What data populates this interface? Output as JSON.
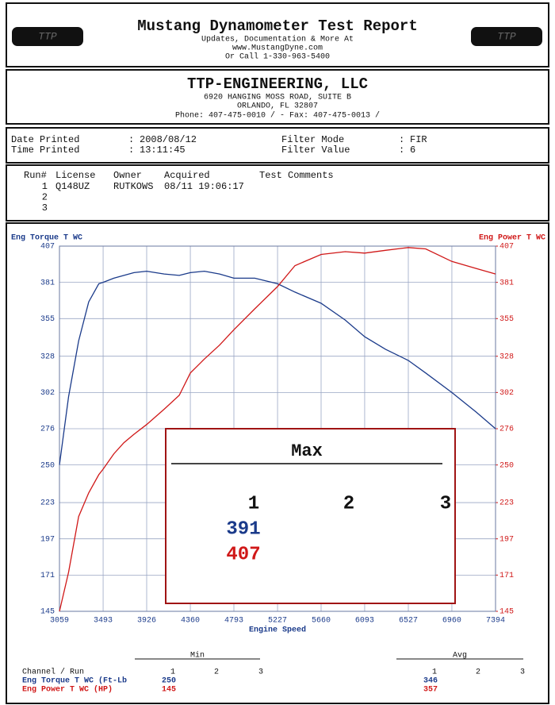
{
  "header": {
    "title": "Mustang Dynamometer Test Report",
    "lines": [
      "Updates, Documentation & More At",
      "www.MustangDyne.com",
      "Or Call 1-330-963-5400"
    ],
    "logo_text": "TTP"
  },
  "company": {
    "name": "TTP-ENGINEERING, LLC",
    "address1": "6920 HANGING MOSS ROAD, SUITE B",
    "address2": "ORLANDO,  FL  32807",
    "phone": "Phone: 407-475-0010 /  - Fax: 407-475-0013 /"
  },
  "info": {
    "separator": ":",
    "fields": [
      {
        "label": "Date Printed",
        "value": "2008/08/12"
      },
      {
        "label": "Time Printed",
        "value": "13:11:45"
      },
      {
        "label": "Filter Mode",
        "value": "FIR"
      },
      {
        "label": "Filter Value",
        "value": "6"
      }
    ]
  },
  "runs": {
    "headers": [
      "Run#",
      "License",
      "Owner",
      "Acquired",
      "Test Comments"
    ],
    "rows": [
      [
        "1",
        "Q148UZ",
        "RUTKOWS",
        "08/11 19:06:17"
      ],
      [
        "2"
      ],
      [
        "3"
      ]
    ]
  },
  "chart_data": {
    "type": "line",
    "ylabel": "Eng Torque T WC",
    "y2label": "Eng Power T WC",
    "xlabel": "Engine Speed",
    "x": [
      3059,
      3150,
      3250,
      3350,
      3450,
      3493,
      3600,
      3700,
      3800,
      3926,
      4100,
      4250,
      4360,
      4500,
      4650,
      4793,
      5000,
      5227,
      5400,
      5660,
      5900,
      6093,
      6300,
      6527,
      6700,
      6960,
      7200,
      7394
    ],
    "series": [
      {
        "name": "Eng Torque T WC",
        "color": "#1a3a8a",
        "values": [
          250,
          299,
          339,
          367,
          380,
          381,
          384,
          386,
          388,
          389,
          387,
          386,
          388,
          389,
          387,
          384,
          384,
          380,
          374,
          366,
          354,
          342,
          333,
          325,
          316,
          302,
          288,
          276
        ]
      },
      {
        "name": "Eng Power T WC",
        "color": "#d01818",
        "axis": "y2",
        "values": [
          145,
          173,
          213,
          230,
          243,
          247,
          258,
          266,
          272,
          279,
          290,
          300,
          316,
          326,
          336,
          347,
          362,
          378,
          393,
          401,
          403,
          402,
          404,
          406,
          405,
          396,
          391,
          387
        ]
      }
    ],
    "xlim": [
      3059,
      7394
    ],
    "xticks": [
      3059,
      3493,
      3926,
      4360,
      4793,
      5227,
      5660,
      6093,
      6527,
      6960,
      7394
    ],
    "ylim": [
      145,
      407
    ],
    "yticks": [
      145,
      171,
      197,
      223,
      250,
      276,
      302,
      328,
      355,
      381,
      407
    ],
    "y2lim": [
      145,
      407
    ],
    "y2ticks": [
      145,
      171,
      197,
      223,
      250,
      276,
      302,
      328,
      355,
      381,
      407
    ],
    "grid": true
  },
  "max_box": {
    "title": "Max",
    "runs": [
      "1",
      "2",
      "3"
    ],
    "torque": 391,
    "power": 407
  },
  "summary": {
    "channel_header": "Channel / Run",
    "min_label": "Min",
    "avg_label": "Avg",
    "run_numbers": [
      "1",
      "2",
      "3"
    ],
    "rows": [
      {
        "name": "Eng Torque T WC (Ft-Lb",
        "min": 250,
        "avg": 346
      },
      {
        "name": "Eng Power T WC (HP)",
        "min": 145,
        "avg": 357
      }
    ]
  }
}
